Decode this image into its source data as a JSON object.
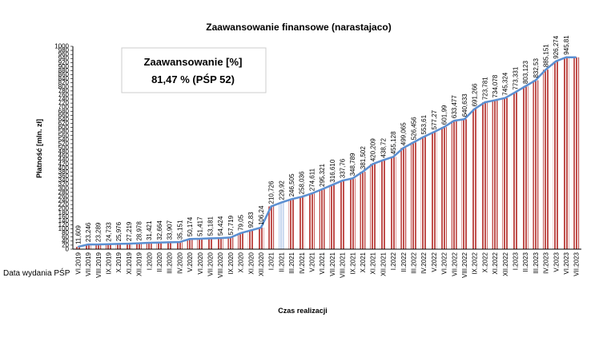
{
  "chart_data": {
    "type": "bar",
    "title": "Zaawansowanie finansowe (narastajaco)",
    "xlabel": "Czas realizacji",
    "ylabel": "Płatność [mln. zł]",
    "ylim": [
      0,
      1000
    ],
    "ytick_step": 20,
    "grid": false,
    "annotation_box": {
      "line1": "Zaawansowanie [%]",
      "line2": "81,47 % (PŚP 52)"
    },
    "side_note": "Data wydania PŚP",
    "categories": [
      "VI.2019",
      "VII.2019",
      "VIII.2019",
      "IX.2019",
      "X.2019",
      "XI.2019",
      "XII.2019",
      "I.2020",
      "II.2020",
      "III.2020",
      "IV.2020",
      "V.2020",
      "VI.2020",
      "VII.2020",
      "VIII.2020",
      "IX.2020",
      "X.2020",
      "XI.2020",
      "XII.2020",
      "I.2021",
      "II.2021",
      "III.2021",
      "IV.2021",
      "V.2021",
      "VI.2021",
      "VII.2021",
      "VIII.2021",
      "IX.2021",
      "X.2021",
      "XI.2021",
      "XII.2021",
      "I.2022",
      "II.2022",
      "III.2022",
      "IV.2022",
      "V.2022",
      "VI.2022",
      "VII.2022",
      "VIII.2022",
      "IX.2022",
      "X.2022",
      "XI.2022",
      "XII.2022",
      "I.2023",
      "II.2023",
      "III.2023",
      "IV.2023",
      "V.2023",
      "VI.2023",
      "VII.2023"
    ],
    "data_labels": [
      "11,609",
      "23,246",
      "23,289",
      "24,733",
      "25,976",
      "27,219",
      "28,978",
      "31,421",
      "32,664",
      "33,907",
      "35,151",
      "50,174",
      "51,417",
      "53,181",
      "54,424",
      "57,719",
      "79,05",
      "92,83",
      "106,24",
      "210,726",
      "229,92",
      "246,505",
      "258,036",
      "274,611",
      "295,321",
      "316,610",
      "337,76",
      "348,789",
      "381,502",
      "420,209",
      "438,72",
      "455,128",
      "499,065",
      "526,456",
      "553,61",
      "577,27",
      "601,99",
      "633,477",
      "640,633",
      "691,266",
      "723,781",
      "734,078",
      "745,324",
      "773,331",
      "803,123",
      "832,53",
      "885,151",
      "926,274",
      "945,81",
      ""
    ],
    "series": [
      {
        "name": "Zaawansowanie",
        "type": "bar",
        "values": [
          11.609,
          23.246,
          23.289,
          24.733,
          25.976,
          27.219,
          28.978,
          31.421,
          32.664,
          33.907,
          35.151,
          50.174,
          51.417,
          53.181,
          54.424,
          57.719,
          79.05,
          92.83,
          106.24,
          210.726,
          229.92,
          246.505,
          258.036,
          274.611,
          295.321,
          316.61,
          337.76,
          348.789,
          381.502,
          420.209,
          438.72,
          455.128,
          499.065,
          526.456,
          553.61,
          577.27,
          601.99,
          633.477,
          640.633,
          691.266,
          723.781,
          734.078,
          745.324,
          773.331,
          803.123,
          832.53,
          885.151,
          926.274,
          945.81,
          945.81
        ]
      },
      {
        "name": "Narastająco",
        "type": "line",
        "values": [
          11.609,
          23.246,
          23.289,
          24.733,
          25.976,
          27.219,
          28.978,
          31.421,
          32.664,
          33.907,
          35.151,
          50.174,
          51.417,
          53.181,
          54.424,
          57.719,
          79.05,
          92.83,
          106.24,
          210.726,
          229.92,
          246.505,
          258.036,
          274.611,
          295.321,
          316.61,
          337.76,
          348.789,
          381.502,
          420.209,
          438.72,
          455.128,
          499.065,
          526.456,
          553.61,
          577.27,
          601.99,
          633.477,
          640.633,
          691.266,
          723.781,
          734.078,
          745.324,
          773.331,
          803.123,
          832.53,
          885.151,
          926.274,
          945.81,
          945.81
        ]
      }
    ],
    "highlight_index": 20,
    "colors": {
      "bar_face": "#c0504d",
      "bar_stripe": "#ffffff",
      "bar_highlight": "#c9d8ef",
      "line": "#5b8fd1",
      "axis": "#000000",
      "box_border": "#cccccc"
    }
  }
}
